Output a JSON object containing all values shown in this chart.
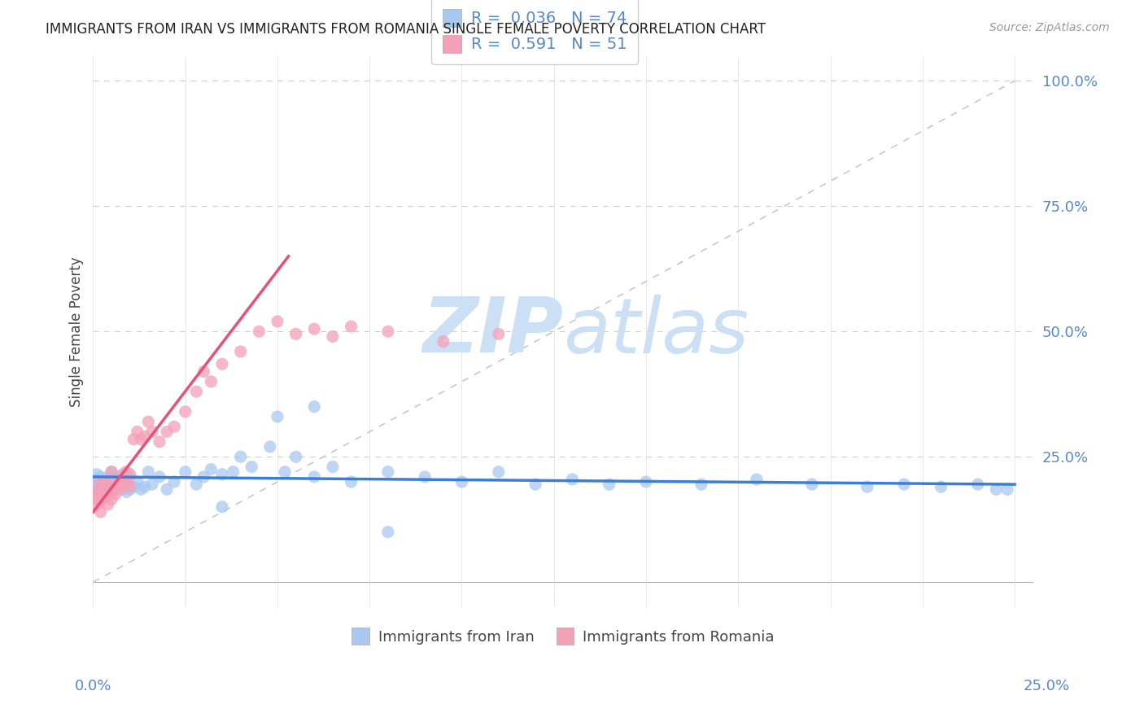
{
  "title": "IMMIGRANTS FROM IRAN VS IMMIGRANTS FROM ROMANIA SINGLE FEMALE POVERTY CORRELATION CHART",
  "source": "Source: ZipAtlas.com",
  "ylabel": "Single Female Poverty",
  "legend_r_iran": "0.036",
  "legend_n_iran": "74",
  "legend_r_romania": "0.591",
  "legend_n_romania": "51",
  "iran_color": "#a8c8f0",
  "romania_color": "#f4a0b8",
  "iran_line_color": "#3a7fd5",
  "romania_line_color": "#e8507a",
  "ref_line_color": "#c8c8c8",
  "watermark_color": "#cce0f5",
  "background_color": "#ffffff",
  "text_color": "#444444",
  "axis_color": "#5588cc",
  "title_color": "#222222",
  "source_color": "#999999",
  "iran_x": [
    0.001,
    0.001,
    0.001,
    0.001,
    0.001,
    0.002,
    0.002,
    0.002,
    0.002,
    0.003,
    0.003,
    0.003,
    0.003,
    0.004,
    0.004,
    0.004,
    0.005,
    0.005,
    0.005,
    0.006,
    0.006,
    0.007,
    0.007,
    0.008,
    0.008,
    0.008,
    0.009,
    0.009,
    0.01,
    0.01,
    0.011,
    0.012,
    0.013,
    0.014,
    0.015,
    0.016,
    0.018,
    0.02,
    0.022,
    0.025,
    0.028,
    0.03,
    0.032,
    0.035,
    0.038,
    0.04,
    0.043,
    0.048,
    0.052,
    0.055,
    0.06,
    0.065,
    0.07,
    0.08,
    0.09,
    0.1,
    0.11,
    0.12,
    0.13,
    0.14,
    0.15,
    0.165,
    0.18,
    0.195,
    0.21,
    0.22,
    0.23,
    0.24,
    0.245,
    0.248,
    0.05,
    0.06,
    0.035,
    0.08
  ],
  "iran_y": [
    0.195,
    0.185,
    0.175,
    0.205,
    0.215,
    0.18,
    0.19,
    0.2,
    0.21,
    0.17,
    0.2,
    0.185,
    0.195,
    0.18,
    0.19,
    0.21,
    0.18,
    0.19,
    0.22,
    0.185,
    0.2,
    0.19,
    0.21,
    0.185,
    0.2,
    0.215,
    0.18,
    0.2,
    0.185,
    0.21,
    0.19,
    0.2,
    0.185,
    0.19,
    0.22,
    0.195,
    0.21,
    0.185,
    0.2,
    0.22,
    0.195,
    0.21,
    0.225,
    0.215,
    0.22,
    0.25,
    0.23,
    0.27,
    0.22,
    0.25,
    0.21,
    0.23,
    0.2,
    0.22,
    0.21,
    0.2,
    0.22,
    0.195,
    0.205,
    0.195,
    0.2,
    0.195,
    0.205,
    0.195,
    0.19,
    0.195,
    0.19,
    0.195,
    0.185,
    0.185,
    0.33,
    0.35,
    0.15,
    0.1
  ],
  "romania_x": [
    0.001,
    0.001,
    0.001,
    0.001,
    0.002,
    0.002,
    0.002,
    0.002,
    0.003,
    0.003,
    0.003,
    0.004,
    0.004,
    0.004,
    0.005,
    0.005,
    0.005,
    0.006,
    0.006,
    0.007,
    0.007,
    0.008,
    0.008,
    0.009,
    0.009,
    0.01,
    0.01,
    0.011,
    0.012,
    0.013,
    0.014,
    0.015,
    0.016,
    0.018,
    0.02,
    0.022,
    0.025,
    0.028,
    0.03,
    0.032,
    0.035,
    0.04,
    0.045,
    0.05,
    0.055,
    0.06,
    0.065,
    0.07,
    0.08,
    0.095,
    0.11
  ],
  "romania_y": [
    0.155,
    0.165,
    0.175,
    0.185,
    0.14,
    0.16,
    0.18,
    0.2,
    0.17,
    0.185,
    0.2,
    0.155,
    0.175,
    0.195,
    0.165,
    0.18,
    0.22,
    0.175,
    0.19,
    0.185,
    0.2,
    0.19,
    0.21,
    0.2,
    0.22,
    0.19,
    0.215,
    0.285,
    0.3,
    0.285,
    0.29,
    0.32,
    0.3,
    0.28,
    0.3,
    0.31,
    0.34,
    0.38,
    0.42,
    0.4,
    0.435,
    0.46,
    0.5,
    0.52,
    0.495,
    0.505,
    0.49,
    0.51,
    0.5,
    0.48,
    0.495
  ],
  "iran_line_x": [
    0.0,
    0.25
  ],
  "iran_line_y": [
    0.21,
    0.195
  ],
  "romania_line_x": [
    0.0,
    0.053
  ],
  "romania_line_y": [
    0.14,
    0.65
  ],
  "ref_line_x": [
    0.0,
    0.25
  ],
  "ref_line_y": [
    0.0,
    1.0
  ],
  "xlim": [
    0.0,
    0.255
  ],
  "ylim": [
    -0.05,
    1.05
  ],
  "yticks": [
    0.25,
    0.5,
    0.75,
    1.0
  ],
  "ytick_labels": [
    "25.0%",
    "50.0%",
    "75.0%",
    "100.0%"
  ]
}
